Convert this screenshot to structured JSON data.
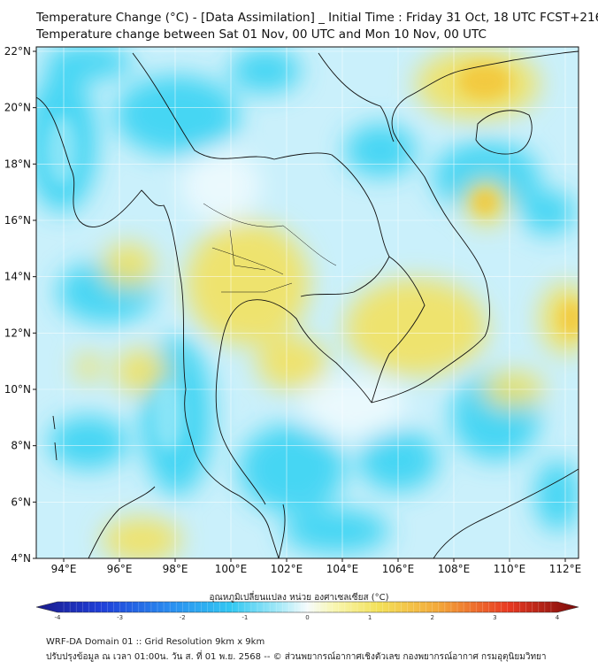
{
  "title": {
    "line1": "Temperature Change (°C) - [Data Assimilation] _ Initial Time : Friday 31 Oct, 18 UTC FCST+216",
    "line2": "Temperature change between Sat 01 Nov, 00 UTC and Mon 10 Nov, 00 UTC"
  },
  "map": {
    "lat_labels": [
      "22°N",
      "20°N",
      "18°N",
      "16°N",
      "14°N",
      "12°N",
      "10°N",
      "8°N",
      "6°N",
      "4°N"
    ],
    "lon_labels": [
      "94°E",
      "96°E",
      "98°E",
      "100°E",
      "102°E",
      "104°E",
      "106°E",
      "108°E",
      "110°E",
      "112°E"
    ],
    "colors": {
      "base": "#caf0fb",
      "cyan": "#39d3f2",
      "light_cyan": "#8fe5f7",
      "white": "#f3fbfe",
      "light_yellow": "#f7f4a8",
      "yellow": "#f2e15e",
      "orange": "#f3c83a",
      "border": "#111111",
      "grid": "#ffffff"
    }
  },
  "colorbar": {
    "label": "อุณหภูมิเปลี่ยนแปลง หน่วย องศาเซลเซียส (°C)",
    "ticks": [
      "-4",
      "-3",
      "-2",
      "-1",
      "0",
      "1",
      "2",
      "3",
      "4"
    ],
    "range": [
      -4,
      4
    ]
  },
  "footer": {
    "line1": "WRF-DA Domain 01 :: Grid Resolution 9km x 9km",
    "line2": "ปรับปรุงข้อมูล ณ เวลา 01:00น. วัน ส. ที่ 01 พ.ย. 2568 -- © ส่วนพยากรณ์อากาศเชิงตัวเลข กองพยากรณ์อากาศ กรมอุตุนิยมวิทยา"
  }
}
